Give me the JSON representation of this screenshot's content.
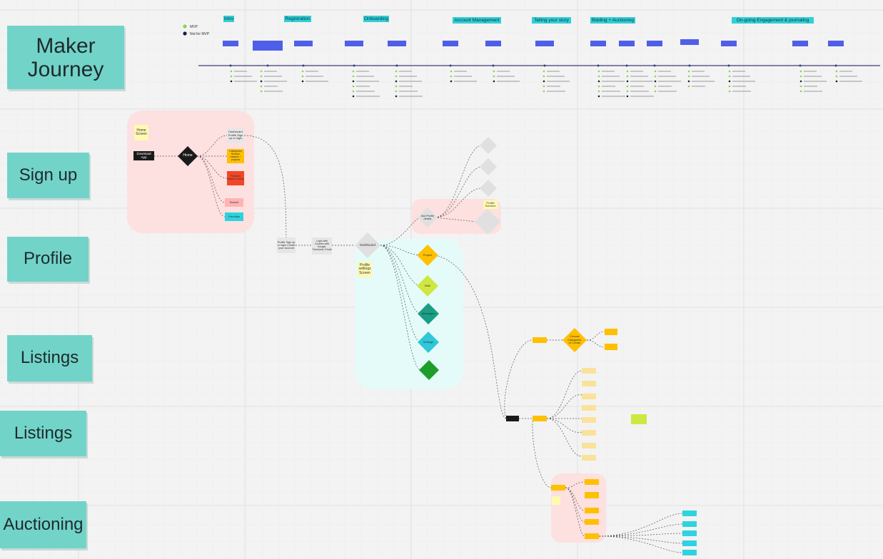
{
  "board": {
    "lanes": [
      "Maker Journey",
      "Sign up",
      "Profile",
      "Listings",
      "Listings",
      "Auctioning"
    ],
    "stages": [
      "Intro",
      "Registration",
      "Onboarding",
      "Account Management",
      "Telling your story",
      "Bidding + Auctioning",
      "On-going Engagement & journaling"
    ],
    "legend": [
      "MVP",
      "Not for MVP"
    ],
    "nodes": [
      {
        "label": "Home Screen"
      },
      {
        "label": "Download App"
      },
      {
        "label": "Home"
      },
      {
        "label": "Dashboard Profile Sign up or login"
      },
      {
        "label": "Categories Browse makers + projects"
      },
      {
        "label": "Featured Makers Listing"
      },
      {
        "label": "Search"
      },
      {
        "label": "Favorites"
      },
      {
        "label": "Profile Sign up or login Create your account"
      },
      {
        "label": "Login with Cookies with Google, Facebook, Email"
      },
      {
        "label": "Dashboard"
      },
      {
        "label": "Profile settings Screen"
      },
      {
        "label": "Add Profile details"
      },
      {
        "label": "Profile Screens"
      },
      {
        "label": "Project"
      },
      {
        "label": "Bids"
      },
      {
        "label": "Messages"
      },
      {
        "label": "Settings"
      },
      {
        "label": "Choose Categories or Create"
      }
    ]
  }
}
